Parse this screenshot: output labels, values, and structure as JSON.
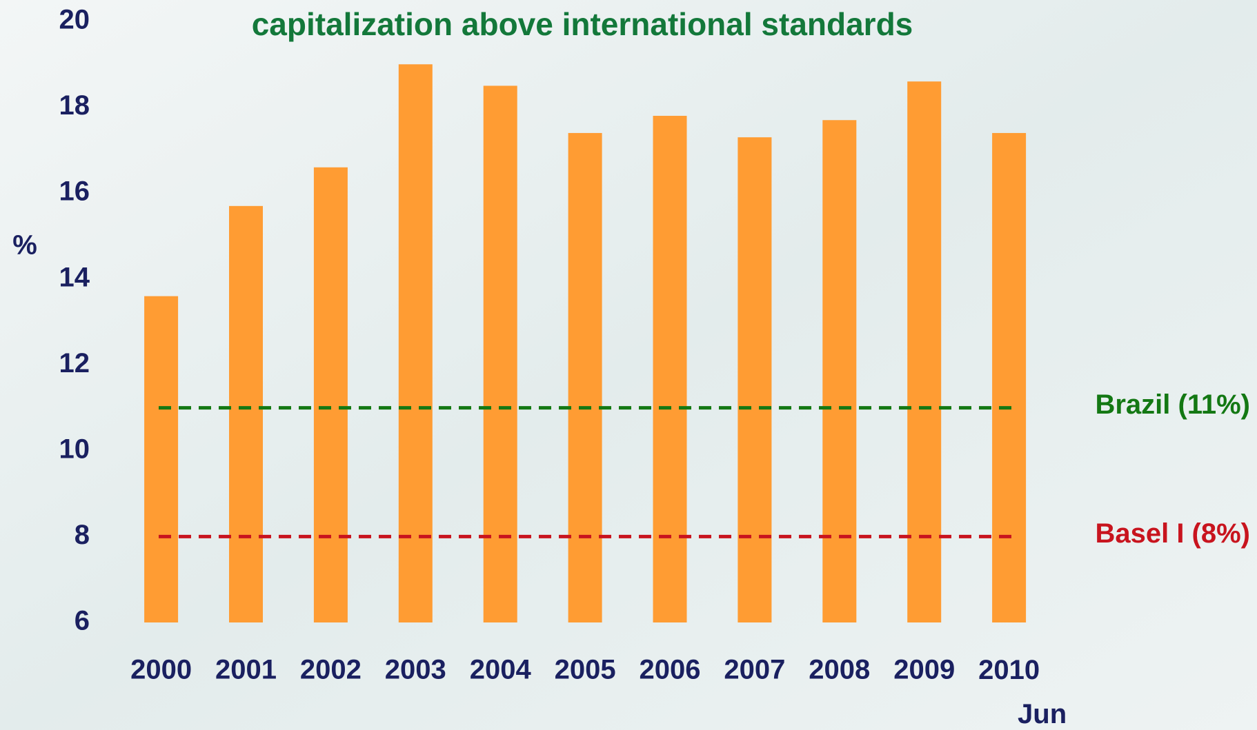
{
  "chart_data": {
    "type": "bar",
    "title": "capitalization above international standards",
    "y_label": "%",
    "categories": [
      "2000",
      "2001",
      "2002",
      "2003",
      "2004",
      "2005",
      "2006",
      "2007",
      "2008",
      "2009",
      "2010 Jun"
    ],
    "values": [
      13.6,
      15.7,
      16.6,
      19.0,
      18.5,
      17.4,
      17.8,
      17.3,
      17.7,
      18.6,
      17.4
    ],
    "color": "#ff9c33",
    "ylim": [
      6,
      20
    ],
    "yticks": [
      6,
      8,
      10,
      12,
      14,
      16,
      18,
      20
    ],
    "reference_lines": [
      {
        "name": "Brazil (11%)",
        "value": 11,
        "color": "#137813"
      },
      {
        "name": "Basel I (8%)",
        "value": 8,
        "color": "#c8141e"
      }
    ]
  }
}
